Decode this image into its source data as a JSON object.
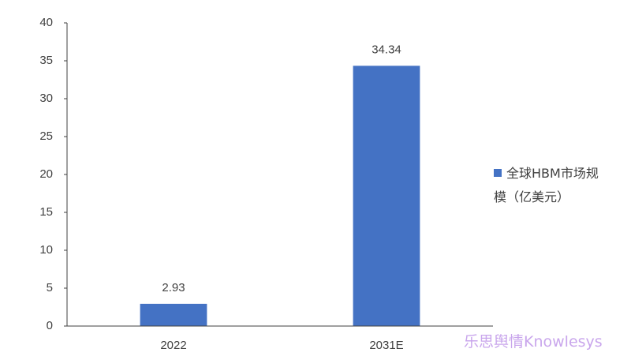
{
  "chart_data": {
    "type": "bar",
    "categories": [
      "2022",
      "2031E"
    ],
    "values": [
      2.93,
      34.34
    ],
    "color": "#4472c4",
    "series_name": "全球HBM市场规模（亿美元）",
    "ylim": [
      0,
      40
    ],
    "yticks": [
      0,
      5,
      10,
      15,
      20,
      25,
      30,
      35,
      40
    ],
    "grid": false,
    "legend": "right",
    "watermark": "乐思舆情Knowlesys"
  }
}
